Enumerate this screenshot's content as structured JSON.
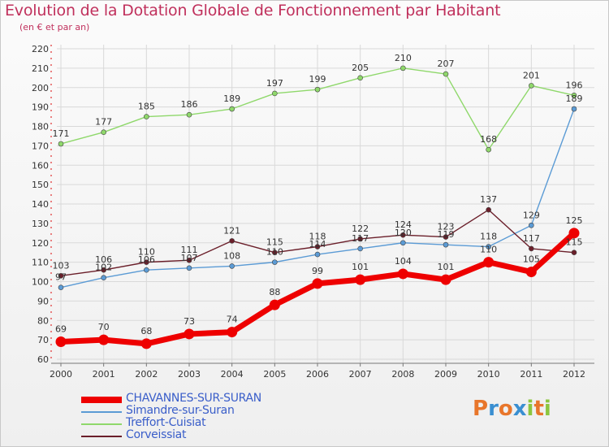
{
  "header": {
    "title": "Evolution de la Dotation Globale de Fonctionnement par Habitant",
    "subtitle": "(en € et par an)"
  },
  "logo": {
    "text": "Proxiti",
    "colors": [
      "#e8762b",
      "#3a8fd1",
      "#e8762b",
      "#3a8fd1",
      "#8cc63f",
      "#e8762b",
      "#8cc63f"
    ]
  },
  "chart_data": {
    "type": "line",
    "title": "Evolution de la Dotation Globale de Fonctionnement par Habitant",
    "subtitle": "(en € et par an)",
    "xlabel": "",
    "ylabel": "",
    "x": [
      "2000",
      "2001",
      "2002",
      "2003",
      "2004",
      "2005",
      "2006",
      "2007",
      "2008",
      "2009",
      "2010",
      "2011",
      "2012"
    ],
    "ylim": [
      60,
      220
    ],
    "yticks": [
      60,
      70,
      80,
      90,
      100,
      110,
      120,
      130,
      140,
      150,
      160,
      170,
      180,
      190,
      200,
      210,
      220
    ],
    "grid": true,
    "legend_position": "bottom-left",
    "series": [
      {
        "name": "CHAVANNES-SUR-SURAN",
        "color": "#ee0000",
        "bold": true,
        "values": [
          69,
          70,
          68,
          73,
          74,
          88,
          99,
          101,
          104,
          101,
          110,
          105,
          125
        ]
      },
      {
        "name": "Simandre-sur-Suran",
        "color": "#5b9bd5",
        "bold": false,
        "values": [
          97,
          102,
          106,
          107,
          108,
          110,
          114,
          117,
          120,
          119,
          118,
          129,
          189
        ]
      },
      {
        "name": "Treffort-Cuisiat",
        "color": "#8fd86b",
        "bold": false,
        "values": [
          171,
          177,
          185,
          186,
          189,
          197,
          199,
          205,
          210,
          207,
          168,
          201,
          196
        ]
      },
      {
        "name": "Corveissiat",
        "color": "#6b1f2a",
        "bold": false,
        "values": [
          103,
          106,
          110,
          111,
          121,
          115,
          118,
          122,
          124,
          123,
          137,
          117,
          115
        ]
      }
    ]
  }
}
